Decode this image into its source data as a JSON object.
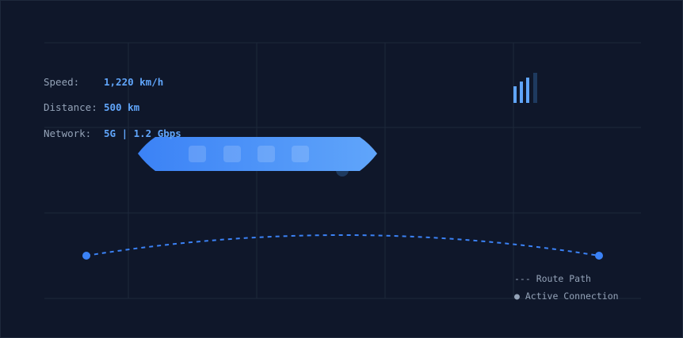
{
  "stats": {
    "speed": {
      "label": "Speed:",
      "value": "1,220 km/h"
    },
    "distance": {
      "label": "Distance:",
      "value": "500 km"
    },
    "network": {
      "label": "Network:",
      "value": "5G | 1.2 Gbps"
    }
  },
  "signal": {
    "bars_total": 4,
    "bars_active": 3,
    "icon": "signal-strength-icon"
  },
  "vehicle": {
    "icon": "hyperloop-pod-icon",
    "windows": 4
  },
  "route": {
    "icon": "route-path-line",
    "start": "route-start-node",
    "end": "route-end-node"
  },
  "legend": {
    "route_path": "--- Route Path",
    "active_connection": "● Active Connection"
  },
  "colors": {
    "background": "#0f172a",
    "grid": "#1e293b",
    "accent": "#3b82f6",
    "accent_light": "#60a5fa",
    "label": "#94a3b8"
  }
}
